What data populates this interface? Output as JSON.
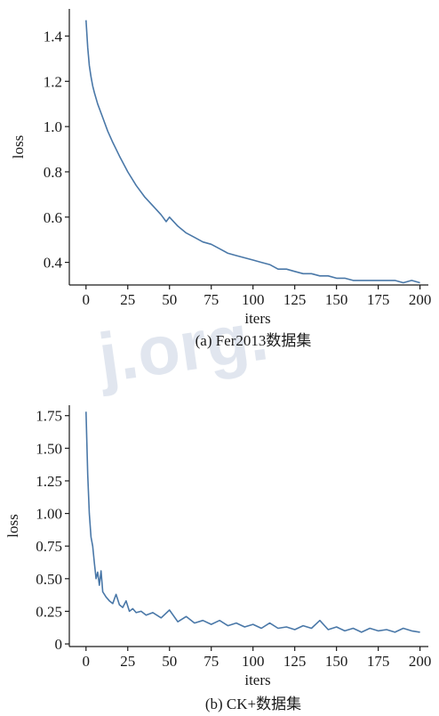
{
  "watermark": "j.org.",
  "chart_data": [
    {
      "type": "line",
      "caption": "(a) Fer2013数据集",
      "xlabel": "iters",
      "ylabel": "loss",
      "xlim": [
        -10,
        205
      ],
      "ylim": [
        0.3,
        1.52
      ],
      "xticks": [
        0,
        25,
        50,
        75,
        100,
        125,
        150,
        175,
        200
      ],
      "yticks": [
        0.4,
        0.6,
        0.8,
        1.0,
        1.2,
        1.4
      ],
      "ytick_labels": [
        "0.4",
        "0.6",
        "0.8",
        "1.0",
        "1.2",
        "1.4"
      ],
      "series_color": "#4a78a8",
      "x": [
        0,
        1,
        2,
        3,
        4,
        5,
        7,
        10,
        13,
        16,
        20,
        25,
        30,
        35,
        40,
        45,
        48,
        50,
        55,
        60,
        65,
        70,
        75,
        80,
        85,
        90,
        95,
        100,
        105,
        110,
        115,
        120,
        125,
        130,
        135,
        140,
        145,
        150,
        155,
        160,
        165,
        170,
        175,
        180,
        185,
        190,
        195,
        200
      ],
      "y": [
        1.47,
        1.35,
        1.27,
        1.22,
        1.18,
        1.15,
        1.1,
        1.04,
        0.98,
        0.93,
        0.87,
        0.8,
        0.74,
        0.69,
        0.65,
        0.61,
        0.58,
        0.6,
        0.56,
        0.53,
        0.51,
        0.49,
        0.48,
        0.46,
        0.44,
        0.43,
        0.42,
        0.41,
        0.4,
        0.39,
        0.37,
        0.37,
        0.36,
        0.35,
        0.35,
        0.34,
        0.34,
        0.33,
        0.33,
        0.32,
        0.32,
        0.32,
        0.32,
        0.32,
        0.32,
        0.31,
        0.32,
        0.31
      ]
    },
    {
      "type": "line",
      "caption": "(b) CK+数据集",
      "xlabel": "iters",
      "ylabel": "loss",
      "xlim": [
        -10,
        205
      ],
      "ylim": [
        -0.02,
        1.83
      ],
      "xticks": [
        0,
        25,
        50,
        75,
        100,
        125,
        150,
        175,
        200
      ],
      "yticks": [
        0,
        0.25,
        0.5,
        0.75,
        1.0,
        1.25,
        1.5,
        1.75
      ],
      "ytick_labels": [
        "0",
        "0.25",
        "0.50",
        "0.75",
        "1.00",
        "1.25",
        "1.50",
        "1.75"
      ],
      "series_color": "#4a78a8",
      "x": [
        0,
        1,
        2,
        3,
        4,
        5,
        6,
        7,
        8,
        9,
        10,
        12,
        14,
        16,
        18,
        20,
        22,
        24,
        26,
        28,
        30,
        33,
        36,
        40,
        45,
        50,
        55,
        60,
        65,
        70,
        75,
        80,
        85,
        90,
        95,
        100,
        105,
        110,
        115,
        120,
        125,
        130,
        135,
        140,
        145,
        150,
        155,
        160,
        165,
        170,
        175,
        180,
        185,
        190,
        195,
        200
      ],
      "y": [
        1.78,
        1.3,
        1.0,
        0.82,
        0.75,
        0.62,
        0.5,
        0.55,
        0.45,
        0.56,
        0.4,
        0.36,
        0.33,
        0.31,
        0.38,
        0.3,
        0.28,
        0.33,
        0.25,
        0.27,
        0.24,
        0.25,
        0.22,
        0.24,
        0.2,
        0.26,
        0.17,
        0.21,
        0.16,
        0.18,
        0.15,
        0.18,
        0.14,
        0.16,
        0.13,
        0.15,
        0.12,
        0.16,
        0.12,
        0.13,
        0.11,
        0.14,
        0.12,
        0.18,
        0.11,
        0.13,
        0.1,
        0.12,
        0.09,
        0.12,
        0.1,
        0.11,
        0.09,
        0.12,
        0.1,
        0.09
      ]
    }
  ]
}
